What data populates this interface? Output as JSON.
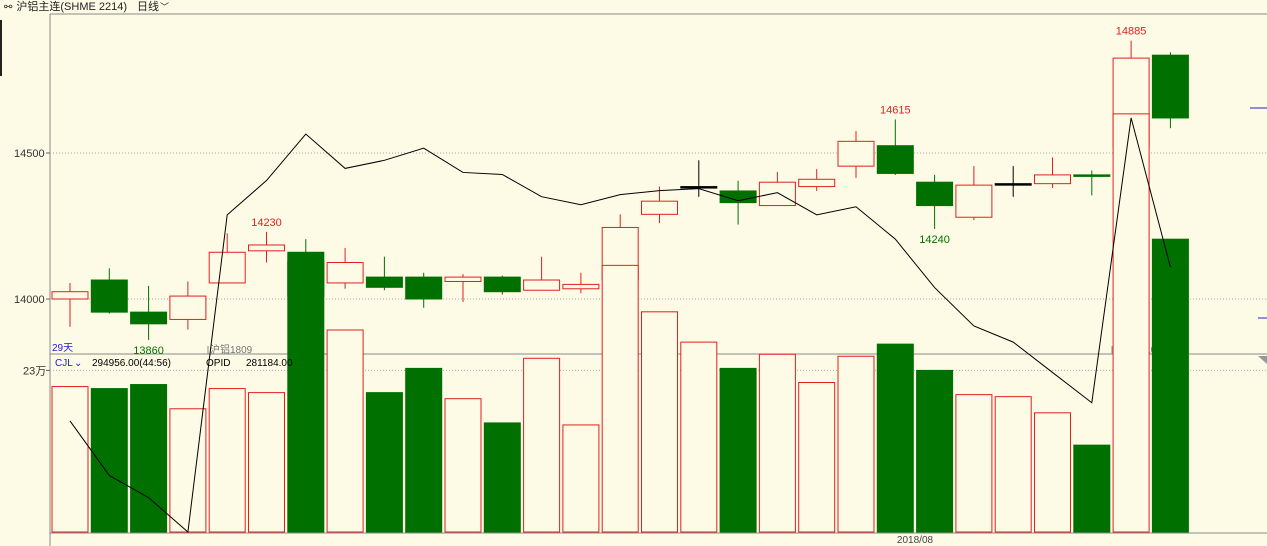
{
  "header": {
    "title": "沪铝主连(SHME 2214)",
    "period": "日线"
  },
  "colors": {
    "up": "#e02020",
    "down": "#007000",
    "background": "#fdfbe6",
    "grid": "#aaaaaa",
    "volume_line": "#000000",
    "label_blue": "#2020cc"
  },
  "chart_data": [
    {
      "type": "candlestick",
      "y_ticks": [
        "14500",
        "14000"
      ],
      "ylim": [
        13840,
        14920
      ],
      "grid": true,
      "candles": [
        {
          "o": 14000,
          "c": 14025,
          "h": 14055,
          "l": 13905
        },
        {
          "o": 14065,
          "c": 13955,
          "h": 14105,
          "l": 13950
        },
        {
          "o": 13955,
          "c": 13915,
          "h": 14045,
          "l": 13860
        },
        {
          "o": 13930,
          "c": 14010,
          "h": 14060,
          "l": 13895
        },
        {
          "o": 14055,
          "c": 14160,
          "h": 14225,
          "l": 14055
        },
        {
          "o": 14165,
          "c": 14185,
          "h": 14230,
          "l": 14125
        },
        {
          "o": 14160,
          "c": 14010,
          "h": 14205,
          "l": 13865
        },
        {
          "o": 14055,
          "c": 14125,
          "h": 14175,
          "l": 14035
        },
        {
          "o": 14075,
          "c": 14040,
          "h": 14145,
          "l": 14030
        },
        {
          "o": 14075,
          "c": 14000,
          "h": 14090,
          "l": 13970
        },
        {
          "o": 14060,
          "c": 14075,
          "h": 14085,
          "l": 13990
        },
        {
          "o": 14075,
          "c": 14025,
          "h": 14080,
          "l": 14015
        },
        {
          "o": 14030,
          "c": 14065,
          "h": 14145,
          "l": 14030
        },
        {
          "o": 14035,
          "c": 14050,
          "h": 14090,
          "l": 14020
        },
        {
          "o": 14065,
          "c": 14245,
          "h": 14290,
          "l": 14045
        },
        {
          "o": 14290,
          "c": 14335,
          "h": 14385,
          "l": 14260
        },
        {
          "o": 14385,
          "c": 14385,
          "h": 14475,
          "l": 14350
        },
        {
          "o": 14370,
          "c": 14330,
          "h": 14405,
          "l": 14255
        },
        {
          "o": 14320,
          "c": 14400,
          "h": 14435,
          "l": 14320
        },
        {
          "o": 14385,
          "c": 14410,
          "h": 14445,
          "l": 14370
        },
        {
          "o": 14455,
          "c": 14540,
          "h": 14575,
          "l": 14415
        },
        {
          "o": 14525,
          "c": 14430,
          "h": 14615,
          "l": 14425
        },
        {
          "o": 14400,
          "c": 14320,
          "h": 14425,
          "l": 14240
        },
        {
          "o": 14280,
          "c": 14390,
          "h": 14455,
          "l": 14270
        },
        {
          "o": 14395,
          "c": 14395,
          "h": 14455,
          "l": 14350
        },
        {
          "o": 14395,
          "c": 14425,
          "h": 14485,
          "l": 14380
        },
        {
          "o": 14425,
          "c": 14420,
          "h": 14440,
          "l": 14355
        },
        {
          "o": 14520,
          "c": 14825,
          "h": 14885,
          "l": 14510
        },
        {
          "o": 14835,
          "c": 14620,
          "h": 14845,
          "l": 14585
        }
      ],
      "annotations": [
        {
          "index": 5,
          "text": "14230",
          "kind": "high"
        },
        {
          "index": 2,
          "text": "13860",
          "kind": "low"
        },
        {
          "index": 21,
          "text": "14615",
          "kind": "high"
        },
        {
          "index": 22,
          "text": "14240",
          "kind": "low"
        },
        {
          "index": 27,
          "text": "14885",
          "kind": "high"
        }
      ],
      "labels": {
        "days": "29天",
        "contract_1": "沪铝1809",
        "contract_2": "沪铝1810"
      }
    },
    {
      "type": "bar",
      "indicator_name": "CJL",
      "readout": "294956.00(44:56)",
      "opi_label": "OPID",
      "opi_value": "281184.00",
      "y_ticks": [
        "23万"
      ],
      "ylim": [
        150000,
        370000
      ],
      "x_label": "2018/08",
      "volume": [
        222000,
        221000,
        223000,
        211000,
        221000,
        219000,
        284000,
        250000,
        219000,
        231000,
        216000,
        204000,
        236000,
        203000,
        282000,
        259000,
        244000,
        231000,
        238000,
        224000,
        237000,
        243000,
        230000,
        218000,
        217000,
        209000,
        193000,
        357000,
        294956
      ],
      "opi": [
        205000,
        178000,
        167000,
        150000,
        307000,
        324000,
        347000,
        330000,
        334000,
        340000,
        328000,
        327000,
        316000,
        312000,
        317000,
        319000,
        320000,
        314000,
        318000,
        307000,
        311000,
        295000,
        271000,
        252000,
        244000,
        229000,
        214000,
        355000,
        281184
      ]
    }
  ]
}
